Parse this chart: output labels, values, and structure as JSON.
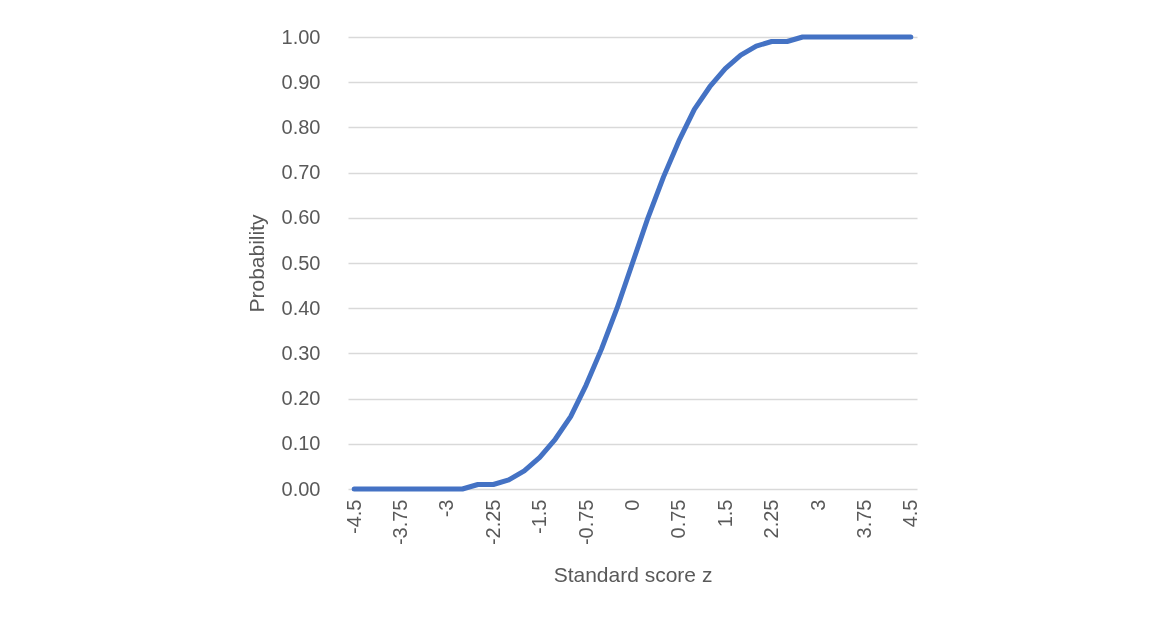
{
  "chart_data": {
    "type": "line",
    "xlabel": "Standard score z",
    "ylabel": "Probability",
    "x": [
      -4.5,
      -4.25,
      -4,
      -3.75,
      -3.5,
      -3.25,
      -3,
      -2.75,
      -2.5,
      -2.25,
      -2,
      -1.75,
      -1.5,
      -1.25,
      -1,
      -0.75,
      -0.5,
      -0.25,
      0,
      0.25,
      0.5,
      0.75,
      1,
      1.25,
      1.5,
      1.75,
      2,
      2.25,
      2.5,
      2.75,
      3,
      3.25,
      3.5,
      3.75,
      4,
      4.25,
      4.5
    ],
    "series": [
      {
        "color": "#4472c4",
        "values": [
          0,
          0,
          0,
          0,
          0,
          0,
          0,
          0,
          0.01,
          0.01,
          0.02,
          0.04,
          0.07,
          0.11,
          0.16,
          0.23,
          0.31,
          0.4,
          0.5,
          0.6,
          0.69,
          0.77,
          0.84,
          0.89,
          0.93,
          0.96,
          0.98,
          0.99,
          0.99,
          1,
          1,
          1,
          1,
          1,
          1,
          1,
          1
        ]
      }
    ],
    "xlim": [
      -4.6,
      4.6
    ],
    "xticks": [
      -4.5,
      -3.75,
      -3,
      -2.25,
      -1.5,
      -0.75,
      0,
      0.75,
      1.5,
      2.25,
      3,
      3.75,
      4.5
    ],
    "ylim": [
      0,
      1
    ],
    "yticks": [
      {
        "value": 0,
        "label": "0.00"
      },
      {
        "value": 0.1,
        "label": "0.10"
      },
      {
        "value": 0.2,
        "label": "0.20"
      },
      {
        "value": 0.3,
        "label": "0.30"
      },
      {
        "value": 0.4,
        "label": "0.40"
      },
      {
        "value": 0.5,
        "label": "0.50"
      },
      {
        "value": 0.6,
        "label": "0.60"
      },
      {
        "value": 0.7,
        "label": "0.70"
      },
      {
        "value": 0.8,
        "label": "0.80"
      },
      {
        "value": 0.9,
        "label": "0.90"
      },
      {
        "value": 1,
        "label": "1.00"
      }
    ],
    "grid": "y",
    "marker": "none",
    "line_style": "solid"
  }
}
